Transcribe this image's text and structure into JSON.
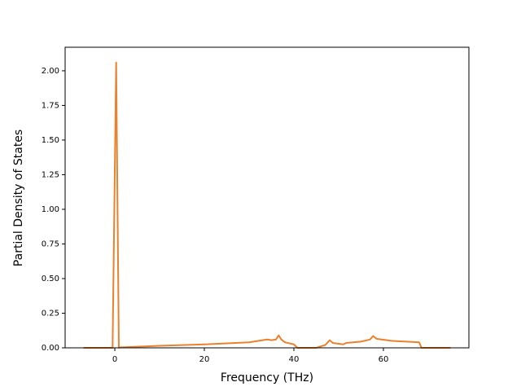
{
  "chart_data": {
    "type": "line",
    "xlabel": "Frequency (THz)",
    "ylabel": "Partial Density of States",
    "series": [
      {
        "color": "#e8822e",
        "x": [
          -7,
          -0.5,
          0.3,
          0.9,
          1,
          10,
          20,
          30,
          34,
          35,
          36,
          36.6,
          37.2,
          38,
          40,
          40.8,
          45,
          47,
          48,
          48.7,
          51,
          51.7,
          55,
          57,
          57.7,
          58.5,
          62,
          68,
          68.5,
          75
        ],
        "values": [
          0,
          0,
          2.06,
          0,
          0.003,
          0.015,
          0.025,
          0.04,
          0.06,
          0.055,
          0.06,
          0.09,
          0.06,
          0.04,
          0.025,
          0,
          0,
          0.02,
          0.055,
          0.035,
          0.025,
          0.035,
          0.045,
          0.06,
          0.085,
          0.065,
          0.05,
          0.04,
          0,
          0
        ]
      }
    ],
    "xlim": [
      -11.1,
      79.1
    ],
    "ylim": [
      0,
      2.17
    ],
    "xticks": [
      0,
      20,
      40,
      60
    ],
    "yticks": [
      {
        "value": 0,
        "label": "0.00"
      },
      {
        "value": 0.25,
        "label": "0.25"
      },
      {
        "value": 0.5,
        "label": "0.50"
      },
      {
        "value": 0.75,
        "label": "0.75"
      },
      {
        "value": 1,
        "label": "1.00"
      },
      {
        "value": 1.25,
        "label": "1.25"
      },
      {
        "value": 1.5,
        "label": "1.50"
      },
      {
        "value": 1.75,
        "label": "1.75"
      },
      {
        "value": 2,
        "label": "2.00"
      }
    ],
    "grid": false
  }
}
